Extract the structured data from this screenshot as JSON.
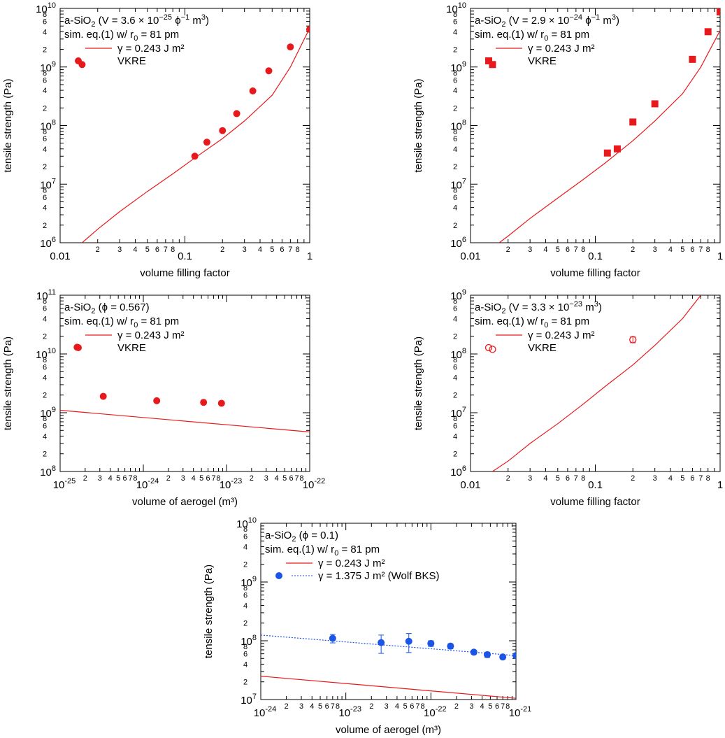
{
  "colors": {
    "red": "#e8191c",
    "blue": "#1a55e6",
    "axis": "#000000"
  },
  "chart_data": [
    {
      "type": "scatter",
      "xscale": "log",
      "yscale": "log",
      "xlim": [
        0.01,
        1
      ],
      "ylim": [
        1000000,
        10000000000
      ],
      "xlabel": "volume filling factor",
      "ylabel": "tensile strength (Pa)",
      "xticks_major": [
        "0.01",
        "0.1",
        "1"
      ],
      "yticks_major": [
        {
          "base": "10",
          "exp": "6"
        },
        {
          "base": "10",
          "exp": "7"
        },
        {
          "base": "10",
          "exp": "8"
        },
        {
          "base": "10",
          "exp": "9"
        },
        {
          "base": "10",
          "exp": "10"
        }
      ],
      "legend": {
        "lines": [
          [
            {
              "t": "a-SiO"
            },
            {
              "t": "2",
              "sub": true
            },
            {
              "t": " (V = 3.6 × 10"
            },
            {
              "t": "−25",
              "sup": true
            },
            {
              "t": " ϕ"
            },
            {
              "t": "−1",
              "sup": true
            },
            {
              "t": " m"
            },
            {
              "t": "3",
              "sup": true
            },
            {
              "t": ")"
            }
          ],
          [
            {
              "t": "sim. eq.(1) w/ r"
            },
            {
              "t": "0",
              "sub": true
            },
            {
              "t": " = 81 pm"
            }
          ]
        ],
        "entries": [
          {
            "label": "γ = 0.243 J m²",
            "marker": "line",
            "color": "red"
          },
          {
            "label": "VKRE",
            "marker": "circle",
            "color": "red"
          }
        ]
      },
      "series": [
        {
          "name": "γ = 0.243 J m²",
          "kind": "line",
          "color": "red",
          "x": [
            0.015,
            0.02,
            0.03,
            0.05,
            0.08,
            0.12,
            0.2,
            0.3,
            0.5,
            0.7,
            1.0
          ],
          "y": [
            1000000,
            1700000,
            3400000,
            7500000,
            15000000,
            28000000,
            60000000,
            120000000,
            330000000,
            1000000000,
            4600000000
          ]
        },
        {
          "name": "VKRE",
          "kind": "points",
          "marker": "circle",
          "color": "red",
          "x": [
            0.015,
            0.12,
            0.15,
            0.2,
            0.26,
            0.35,
            0.47,
            0.7,
            1.0
          ],
          "y": [
            1100000000,
            30000000,
            52000000,
            82000000,
            160000000,
            390000000,
            860000000,
            2200000000,
            4400000000
          ]
        }
      ]
    },
    {
      "type": "scatter",
      "xscale": "log",
      "yscale": "log",
      "xlim": [
        0.01,
        1
      ],
      "ylim": [
        1000000,
        10000000000
      ],
      "xlabel": "volume filling factor",
      "ylabel": "tensile strength (Pa)",
      "xticks_major": [
        "0.01",
        "0.1",
        "1"
      ],
      "yticks_major": [
        {
          "base": "10",
          "exp": "6"
        },
        {
          "base": "10",
          "exp": "7"
        },
        {
          "base": "10",
          "exp": "8"
        },
        {
          "base": "10",
          "exp": "9"
        },
        {
          "base": "10",
          "exp": "10"
        }
      ],
      "legend": {
        "lines": [
          [
            {
              "t": "a-SiO"
            },
            {
              "t": "2",
              "sub": true
            },
            {
              "t": " (V = 2.9 × 10"
            },
            {
              "t": "−24",
              "sup": true
            },
            {
              "t": " ϕ"
            },
            {
              "t": "−1",
              "sup": true
            },
            {
              "t": " m"
            },
            {
              "t": "3",
              "sup": true
            },
            {
              "t": ")"
            }
          ],
          [
            {
              "t": "sim. eq.(1) w/ r"
            },
            {
              "t": "0",
              "sub": true
            },
            {
              "t": " = 81 pm"
            }
          ]
        ],
        "entries": [
          {
            "label": "γ = 0.243 J m²",
            "marker": "line",
            "color": "red"
          },
          {
            "label": "VKRE",
            "marker": "square",
            "color": "red"
          }
        ]
      },
      "series": [
        {
          "name": "γ = 0.243 J m²",
          "kind": "line",
          "color": "red",
          "x": [
            0.017,
            0.02,
            0.03,
            0.05,
            0.08,
            0.12,
            0.2,
            0.3,
            0.5,
            0.7,
            1.0
          ],
          "y": [
            1000000,
            1300000,
            2600000,
            5800000,
            12000000,
            23000000,
            55000000,
            120000000,
            350000000,
            1000000000,
            4200000000
          ]
        },
        {
          "name": "VKRE",
          "kind": "points",
          "marker": "square",
          "color": "red",
          "x": [
            0.015,
            0.125,
            0.15,
            0.2,
            0.3,
            0.6,
            0.8,
            1.0
          ],
          "y": [
            1100000000,
            34000000,
            40000000,
            115000000,
            235000000,
            1350000000,
            4000000000,
            8700000000
          ]
        }
      ]
    },
    {
      "type": "scatter",
      "xscale": "log",
      "yscale": "log",
      "xlim": [
        1e-25,
        1e-22
      ],
      "ylim": [
        100000000,
        100000000000
      ],
      "xlabel": "volume of aerogel (m³)",
      "ylabel": "tensile strength (Pa)",
      "xticks_major": [
        {
          "base": "10",
          "exp": "-25"
        },
        {
          "base": "10",
          "exp": "-24"
        },
        {
          "base": "10",
          "exp": "-23"
        },
        {
          "base": "10",
          "exp": "-22"
        }
      ],
      "yticks_major": [
        {
          "base": "10",
          "exp": "8"
        },
        {
          "base": "10",
          "exp": "9"
        },
        {
          "base": "10",
          "exp": "10"
        },
        {
          "base": "10",
          "exp": "11"
        }
      ],
      "legend": {
        "lines": [
          [
            {
              "t": "a-SiO"
            },
            {
              "t": "2",
              "sub": true
            },
            {
              "t": " (ϕ = 0.567)"
            }
          ],
          [
            {
              "t": "sim. eq.(1) w/ r"
            },
            {
              "t": "0",
              "sub": true
            },
            {
              "t": " = 81 pm"
            }
          ]
        ],
        "entries": [
          {
            "label": "γ = 0.243 J m²",
            "marker": "line",
            "color": "red"
          },
          {
            "label": "VKRE",
            "marker": "circle",
            "color": "red"
          }
        ]
      },
      "series": [
        {
          "name": "γ = 0.243 J m²",
          "kind": "line",
          "color": "red",
          "x": [
            1e-25,
            1e-22
          ],
          "y": [
            1100000000,
            470000000
          ]
        },
        {
          "name": "VKRE",
          "kind": "points",
          "marker": "circle",
          "color": "red",
          "x": [
            1.6e-25,
            3.3e-25,
            1.45e-24,
            5.3e-24,
            8.7e-24
          ],
          "y": [
            13000000000,
            1900000000,
            1600000000,
            1500000000,
            1450000000
          ]
        }
      ]
    },
    {
      "type": "scatter",
      "xscale": "log",
      "yscale": "log",
      "xlim": [
        0.01,
        1
      ],
      "ylim": [
        1000000,
        1000000000
      ],
      "xlabel": "volume filling factor",
      "ylabel": "tensile strength (Pa)",
      "xticks_major": [
        "0.01",
        "0.1",
        "1"
      ],
      "yticks_major": [
        {
          "base": "10",
          "exp": "6"
        },
        {
          "base": "10",
          "exp": "7"
        },
        {
          "base": "10",
          "exp": "8"
        },
        {
          "base": "10",
          "exp": "9"
        }
      ],
      "legend": {
        "lines": [
          [
            {
              "t": "a-SiO"
            },
            {
              "t": "2",
              "sub": true
            },
            {
              "t": " (V = 3.3 × 10"
            },
            {
              "t": "−23",
              "sup": true
            },
            {
              "t": " m"
            },
            {
              "t": "3",
              "sup": true
            },
            {
              "t": ")"
            }
          ],
          [
            {
              "t": "sim. eq.(1) w/ r"
            },
            {
              "t": "0",
              "sub": true
            },
            {
              "t": " = 81 pm"
            }
          ]
        ],
        "entries": [
          {
            "label": "γ = 0.243 J m²",
            "marker": "line",
            "color": "red"
          },
          {
            "label": "VKRE",
            "marker": "open-circle",
            "color": "red"
          }
        ]
      },
      "series": [
        {
          "name": "γ = 0.243 J m²",
          "kind": "line",
          "color": "red",
          "x": [
            0.015,
            0.02,
            0.03,
            0.05,
            0.08,
            0.12,
            0.2,
            0.3,
            0.5,
            0.7
          ],
          "y": [
            1000000,
            1500000,
            3000000,
            6500000,
            14000000,
            28000000,
            65000000,
            140000000,
            400000000,
            1000000000
          ]
        },
        {
          "name": "VKRE",
          "kind": "points",
          "marker": "open-circle",
          "color": "red",
          "x": [
            0.015,
            0.2
          ],
          "y": [
            120000000,
            175000000
          ],
          "yerr": [
            0,
            20000000
          ]
        }
      ]
    },
    {
      "type": "scatter",
      "xscale": "log",
      "yscale": "log",
      "xlim": [
        1e-24,
        1e-21
      ],
      "ylim": [
        10000000,
        10000000000
      ],
      "xlabel": "volume of aerogel (m³)",
      "ylabel": "tensile strength (Pa)",
      "xticks_major": [
        {
          "base": "10",
          "exp": "-24"
        },
        {
          "base": "10",
          "exp": "-23"
        },
        {
          "base": "10",
          "exp": "-22"
        },
        {
          "base": "10",
          "exp": "-21"
        }
      ],
      "yticks_major": [
        {
          "base": "10",
          "exp": "7"
        },
        {
          "base": "10",
          "exp": "8"
        },
        {
          "base": "10",
          "exp": "9"
        },
        {
          "base": "10",
          "exp": "10"
        }
      ],
      "legend": {
        "lines": [
          [
            {
              "t": "a-SiO"
            },
            {
              "t": "2",
              "sub": true
            },
            {
              "t": " (ϕ = 0.1)"
            }
          ],
          [
            {
              "t": "sim. eq.(1) w/ r"
            },
            {
              "t": "0",
              "sub": true
            },
            {
              "t": " = 81 pm"
            }
          ]
        ],
        "entries": [
          {
            "label": "γ = 0.243 J m²",
            "marker": "line",
            "color": "red"
          },
          {
            "label": "γ = 1.375 J m² (Wolf BKS)",
            "marker": "circle+dotted",
            "color": "blue"
          }
        ]
      },
      "series": [
        {
          "name": "γ = 0.243 J m²",
          "kind": "line",
          "color": "red",
          "x": [
            1e-24,
            1e-21
          ],
          "y": [
            25000000,
            10500000
          ]
        },
        {
          "name": "γ = 1.375 J m² (Wolf BKS)",
          "kind": "dotted-line",
          "color": "blue",
          "x": [
            1e-24,
            1e-21
          ],
          "y": [
            125000000,
            56000000
          ]
        },
        {
          "name": "γ = 1.375 J m² (Wolf BKS)",
          "kind": "points",
          "marker": "circle",
          "color": "blue",
          "x": [
            7e-24,
            2.6e-23,
            5.5e-23,
            1e-22,
            1.7e-22,
            3.2e-22,
            4.6e-22,
            7e-22,
            1e-21
          ],
          "y": [
            110000000,
            93000000,
            98000000,
            90000000,
            81000000,
            64000000,
            58000000,
            53000000,
            56000000
          ],
          "yerr": [
            18000000,
            32000000,
            35000000,
            10000000,
            8000000,
            5000000,
            6000000,
            4000000,
            5000000
          ]
        }
      ]
    }
  ]
}
